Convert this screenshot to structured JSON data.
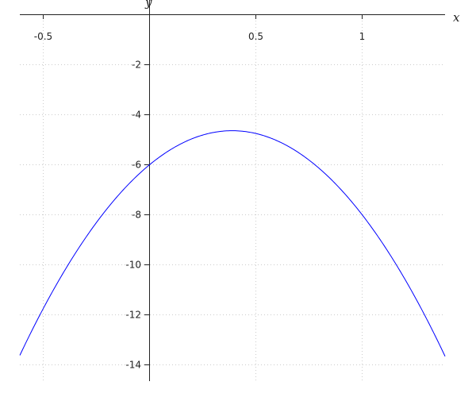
{
  "chart_data": {
    "type": "line",
    "title": "",
    "xlabel": "x",
    "ylabel": "y",
    "xlim": [
      -0.61,
      1.39
    ],
    "ylim": [
      -14.6,
      0
    ],
    "grid": true,
    "x_ticks": [
      -0.5,
      0.5,
      1
    ],
    "x_tick_labels": [
      "-0.5",
      "0.5",
      "1"
    ],
    "y_ticks": [
      -2,
      -4,
      -6,
      -8,
      -10,
      -12,
      -14
    ],
    "y_tick_labels": [
      "-2",
      "-4",
      "-6",
      "-8",
      "-10",
      "-12",
      "-14"
    ],
    "series": [
      {
        "function": "y = -9x^2 + 7x - 6",
        "coefficients": [
          -9,
          7,
          -6
        ],
        "color": "#0000ff"
      }
    ]
  }
}
